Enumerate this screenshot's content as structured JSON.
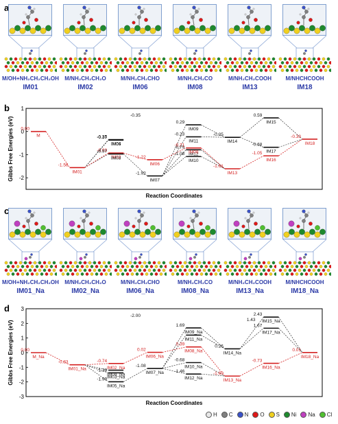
{
  "panel_labels": [
    "a",
    "b",
    "c",
    "d"
  ],
  "panel_a": [
    {
      "name": "M/OH+NH₂CH₂CH₂OH",
      "label": "IM01"
    },
    {
      "name": "M/NH₂CH₂CH₂O",
      "label": "IM02"
    },
    {
      "name": "M/NH₂CH₂CHO",
      "label": "IM06"
    },
    {
      "name": "M/NH₂CH₂CO",
      "label": "IM08"
    },
    {
      "name": "M/NH₂CH₂COOH",
      "label": "IM13"
    },
    {
      "name": "M/NHCHCOOH",
      "label": "IM18"
    }
  ],
  "panel_c": [
    {
      "name": "M/OH+NH₂CH₂CH₂OH",
      "label": "IM01_Na"
    },
    {
      "name": "M/NH₂CH₂CH₂O",
      "label": "IM02_Na"
    },
    {
      "name": "M/NH₂CH₂CHO",
      "label": "IM06_Na"
    },
    {
      "name": "M/NH₂CH₂CO",
      "label": "IM08_Na"
    },
    {
      "name": "M/NH₂CH₂COOH",
      "label": "IM13_Na"
    },
    {
      "name": "M/NHCHCOOH",
      "label": "IM18_Na"
    }
  ],
  "legend": [
    {
      "symbol": "H",
      "color": "#e8e8e8"
    },
    {
      "symbol": "C",
      "color": "#808080"
    },
    {
      "symbol": "N",
      "color": "#3a52c8"
    },
    {
      "symbol": "O",
      "color": "#e01818"
    },
    {
      "symbol": "S",
      "color": "#f0d020"
    },
    {
      "symbol": "Ni",
      "color": "#1e8a2e"
    },
    {
      "symbol": "Na",
      "color": "#c040c0"
    },
    {
      "symbol": "Cl",
      "color": "#50c030"
    }
  ],
  "colors": {
    "main_path": "#d42020",
    "side_path": "#111111",
    "label_blue": "#2b3aa6"
  },
  "chart_data": [
    {
      "type": "line",
      "panel": "b",
      "ylabel": "Gibbs Free Energies (eV)",
      "xlabel": "Reaction Coordinates",
      "ylim": [
        -2.5,
        1.0
      ],
      "yticks": [
        -2,
        -1,
        0,
        1
      ],
      "states": [
        {
          "name": "M",
          "x": 0,
          "y": 0.0,
          "main": true,
          "value_label": "0.00"
        },
        {
          "name": "IM01",
          "x": 1,
          "y": -1.56,
          "main": true,
          "value_label": "-1.56"
        },
        {
          "name": "IM04",
          "x": 2,
          "y": -0.35,
          "main": false,
          "value_label": "-0.35"
        },
        {
          "name": "IM05",
          "x": 2,
          "y": -0.37,
          "main": false,
          "value_label": "-0.37"
        },
        {
          "name": "IM02",
          "x": 2,
          "y": -0.93,
          "main": true,
          "value_label": "-0.93"
        },
        {
          "name": "IM03",
          "x": 2,
          "y": -0.97,
          "main": false,
          "value_label": "-0.97"
        },
        {
          "name": "IM06",
          "x": 3,
          "y": -1.22,
          "main": true,
          "value_label": "-1.22"
        },
        {
          "name": "IM07",
          "x": 3,
          "y": -1.92,
          "main": false,
          "value_label": "-1.92"
        },
        {
          "name": "IM09",
          "x": 4,
          "y": 0.29,
          "main": false,
          "value_label": "0.29"
        },
        {
          "name": "IM11",
          "x": 4,
          "y": -0.23,
          "main": false,
          "value_label": "-0.23"
        },
        {
          "name": "IM12",
          "x": 4,
          "y": -0.79,
          "main": false,
          "value_label": "-0.79"
        },
        {
          "name": "IM08",
          "x": 4,
          "y": -0.71,
          "main": true,
          "value_label": "-0.71"
        },
        {
          "name": "IM10",
          "x": 4,
          "y": -1.08,
          "main": false,
          "value_label": "-1.08"
        },
        {
          "name": "IM14",
          "x": 5,
          "y": -0.25,
          "main": false,
          "value_label": "-0.25"
        },
        {
          "name": "IM13",
          "x": 5,
          "y": -1.61,
          "main": true,
          "value_label": "-1.61"
        },
        {
          "name": "IM15",
          "x": 6,
          "y": 0.59,
          "main": false,
          "value_label": "0.59"
        },
        {
          "name": "IM17",
          "x": 6,
          "y": -0.68,
          "main": false,
          "value_label": "-0.68"
        },
        {
          "name": "IM16",
          "x": 6,
          "y": -1.05,
          "main": true,
          "value_label": "-1.05"
        },
        {
          "name": "IM18",
          "x": 7,
          "y": -0.33,
          "main": true,
          "value_label": "-0.33"
        }
      ],
      "extra_value_labels": [
        "-0.35"
      ],
      "main_path": [
        "M",
        "IM01",
        "IM02",
        "IM06",
        "IM08",
        "IM13",
        "IM16",
        "IM18"
      ],
      "side_links": [
        [
          "IM01",
          "IM04"
        ],
        [
          "IM01",
          "IM05"
        ],
        [
          "IM01",
          "IM03"
        ],
        [
          "IM03",
          "IM07"
        ],
        [
          "IM07",
          "IM09"
        ],
        [
          "IM07",
          "IM11"
        ],
        [
          "IM07",
          "IM12"
        ],
        [
          "IM07",
          "IM10"
        ],
        [
          "IM09",
          "IM14"
        ],
        [
          "IM11",
          "IM14"
        ],
        [
          "IM12",
          "IM13"
        ],
        [
          "IM10",
          "IM13"
        ],
        [
          "IM14",
          "IM15"
        ],
        [
          "IM14",
          "IM17"
        ],
        [
          "IM15",
          "IM18"
        ],
        [
          "IM17",
          "IM18"
        ]
      ]
    },
    {
      "type": "line",
      "panel": "d",
      "ylabel": "Gibbs Free Energies (eV)",
      "xlabel": "Reaction Coordinates",
      "ylim": [
        -3,
        3
      ],
      "yticks": [
        -3,
        -2,
        -1,
        0,
        1,
        2,
        3
      ],
      "states": [
        {
          "name": "M_Na",
          "x": 0,
          "y": 0.0,
          "main": true,
          "value_label": "0.00"
        },
        {
          "name": "IM01_Na",
          "x": 1,
          "y": -0.83,
          "main": true,
          "value_label": "-0.83"
        },
        {
          "name": "IM02_Na",
          "x": 2,
          "y": -0.74,
          "main": true,
          "value_label": "-0.74"
        },
        {
          "name": "IM04_Na",
          "x": 2,
          "y": -1.2,
          "main": false,
          "value_label": ""
        },
        {
          "name": "IM03_Na",
          "x": 2,
          "y": -1.38,
          "main": false,
          "value_label": "-1.38"
        },
        {
          "name": "IM05_Na",
          "x": 2,
          "y": -1.99,
          "main": false,
          "value_label": "-1.99"
        },
        {
          "name": "IM06_Na",
          "x": 3,
          "y": 0.02,
          "main": true,
          "value_label": "0.02"
        },
        {
          "name": "IM07_Na",
          "x": 3,
          "y": -1.08,
          "main": false,
          "value_label": "-1.08"
        },
        {
          "name": "IM09_Na",
          "x": 4,
          "y": 1.69,
          "main": false,
          "value_label": "1.69"
        },
        {
          "name": "IM11_Na",
          "x": 4,
          "y": 1.2,
          "main": false,
          "value_label": ""
        },
        {
          "name": "IM08_Na",
          "x": 4,
          "y": 0.39,
          "main": true,
          "value_label": "0.39"
        },
        {
          "name": "IM10_Na",
          "x": 4,
          "y": -0.68,
          "main": false,
          "value_label": "-0.68"
        },
        {
          "name": "IM12_Na",
          "x": 4,
          "y": -1.46,
          "main": false,
          "value_label": "-1.46"
        },
        {
          "name": "IM14_Na",
          "x": 5,
          "y": 0.26,
          "main": false,
          "value_label": "0.26"
        },
        {
          "name": "IM13_Na",
          "x": 5,
          "y": -1.6,
          "main": true,
          "value_label": "-1.60"
        },
        {
          "name": "IM15_Na",
          "x": 6,
          "y": 2.43,
          "main": false,
          "value_label": "2.43"
        },
        {
          "name": "IM17_Na",
          "x": 6,
          "y": 1.67,
          "main": false,
          "value_label": "1.67"
        },
        {
          "name": "IM16_Na",
          "x": 6,
          "y": -0.73,
          "main": true,
          "value_label": "-0.73"
        },
        {
          "name": "IM18_Na",
          "x": 7,
          "y": 0.01,
          "main": true,
          "value_label": "0.01"
        }
      ],
      "extra_value_labels": [
        "-2.00",
        "1.43"
      ],
      "main_path": [
        "M_Na",
        "IM01_Na",
        "IM02_Na",
        "IM06_Na",
        "IM08_Na",
        "IM13_Na",
        "IM16_Na",
        "IM18_Na"
      ],
      "side_links": [
        [
          "IM01_Na",
          "IM04_Na"
        ],
        [
          "IM01_Na",
          "IM03_Na"
        ],
        [
          "IM01_Na",
          "IM05_Na"
        ],
        [
          "IM05_Na",
          "IM07_Na"
        ],
        [
          "IM07_Na",
          "IM09_Na"
        ],
        [
          "IM07_Na",
          "IM11_Na"
        ],
        [
          "IM07_Na",
          "IM10_Na"
        ],
        [
          "IM07_Na",
          "IM12_Na"
        ],
        [
          "IM09_Na",
          "IM14_Na"
        ],
        [
          "IM11_Na",
          "IM14_Na"
        ],
        [
          "IM10_Na",
          "IM13_Na"
        ],
        [
          "IM12_Na",
          "IM13_Na"
        ],
        [
          "IM14_Na",
          "IM15_Na"
        ],
        [
          "IM14_Na",
          "IM17_Na"
        ],
        [
          "IM15_Na",
          "IM18_Na"
        ],
        [
          "IM17_Na",
          "IM18_Na"
        ]
      ]
    }
  ]
}
